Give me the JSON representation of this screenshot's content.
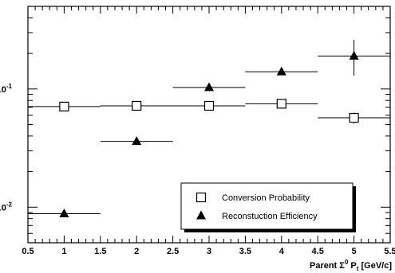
{
  "chart_data": {
    "type": "scatter",
    "title": "",
    "xlabel": "Parent Σ⁰ Pₜ [GeV/c]",
    "xlabel_parts": {
      "prefix": "Parent ",
      "sigma": "Σ",
      "sup": "0",
      "p": " P",
      "sub": "t",
      "unit": " [GeV/c]"
    },
    "ylabel": "",
    "xlim": [
      0.5,
      5.5
    ],
    "ylim": [
      0.005,
      0.5
    ],
    "yscale": "log",
    "grid": false,
    "legend_position": "bottom-right",
    "x_ticks": [
      "0.5",
      "1",
      "1.5",
      "2",
      "2.5",
      "3",
      "3.5",
      "4",
      "4.5",
      "5",
      "5.5"
    ],
    "y_ticks": [
      {
        "value": 0.01,
        "base": "10",
        "exp": "-2"
      },
      {
        "value": 0.1,
        "base": "10",
        "exp": "-1"
      }
    ],
    "series": [
      {
        "name": "Conversion Probability",
        "marker": "open-square",
        "color": "#000000",
        "points": [
          {
            "x": 1,
            "y": 0.071,
            "xerr": 0.5,
            "yerr": 0.003
          },
          {
            "x": 2,
            "y": 0.072,
            "xerr": 0.5,
            "yerr": 0.003
          },
          {
            "x": 3,
            "y": 0.072,
            "xerr": 0.5,
            "yerr": 0.003
          },
          {
            "x": 4,
            "y": 0.075,
            "xerr": 0.5,
            "yerr": 0.003
          },
          {
            "x": 5,
            "y": 0.057,
            "xerr": 0.5,
            "yerr": 0.006
          }
        ]
      },
      {
        "name": "Reconstuction Efficiency",
        "marker": "filled-triangle",
        "color": "#000000",
        "points": [
          {
            "x": 1,
            "y": 0.0088,
            "xerr": 0.5,
            "yerr": 0.0004
          },
          {
            "x": 2,
            "y": 0.036,
            "xerr": 0.5,
            "yerr": 0.0015
          },
          {
            "x": 3,
            "y": 0.103,
            "xerr": 0.5,
            "yerr": 0.004
          },
          {
            "x": 4,
            "y": 0.14,
            "xerr": 0.5,
            "yerr": 0.008
          },
          {
            "x": 5,
            "y": 0.19,
            "xerr": 0.5,
            "yerr": [
              0.06,
              0.07
            ]
          }
        ]
      }
    ]
  }
}
